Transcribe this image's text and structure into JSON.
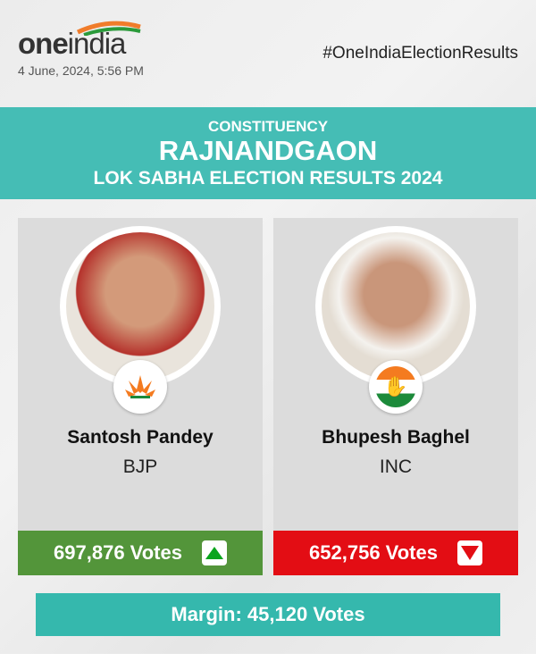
{
  "header": {
    "logo_text": "oneindia",
    "date": "4 June, 2024, 5:56 PM",
    "hashtag": "#OneIndiaElectionResults"
  },
  "banner": {
    "label": "CONSTITUENCY",
    "constituency": "RAJNANDGAON",
    "subtitle": "LOK SABHA ELECTION RESULTS 2024"
  },
  "candidates": [
    {
      "name": "Santosh Pandey",
      "party": "BJP",
      "votes": "697,876 Votes",
      "trend": "up",
      "party_icon": "bjp-lotus-icon",
      "bar_color": "#53953a"
    },
    {
      "name": "Bhupesh Baghel",
      "party": "INC",
      "votes": "652,756 Votes",
      "trend": "down",
      "party_icon": "inc-hand-icon",
      "bar_color": "#e30d14"
    }
  ],
  "margin": "Margin: 45,120 Votes",
  "colors": {
    "banner": "#45bdb5",
    "margin": "#35b8ad",
    "up": "#0aa51e",
    "down": "#e30d14"
  }
}
